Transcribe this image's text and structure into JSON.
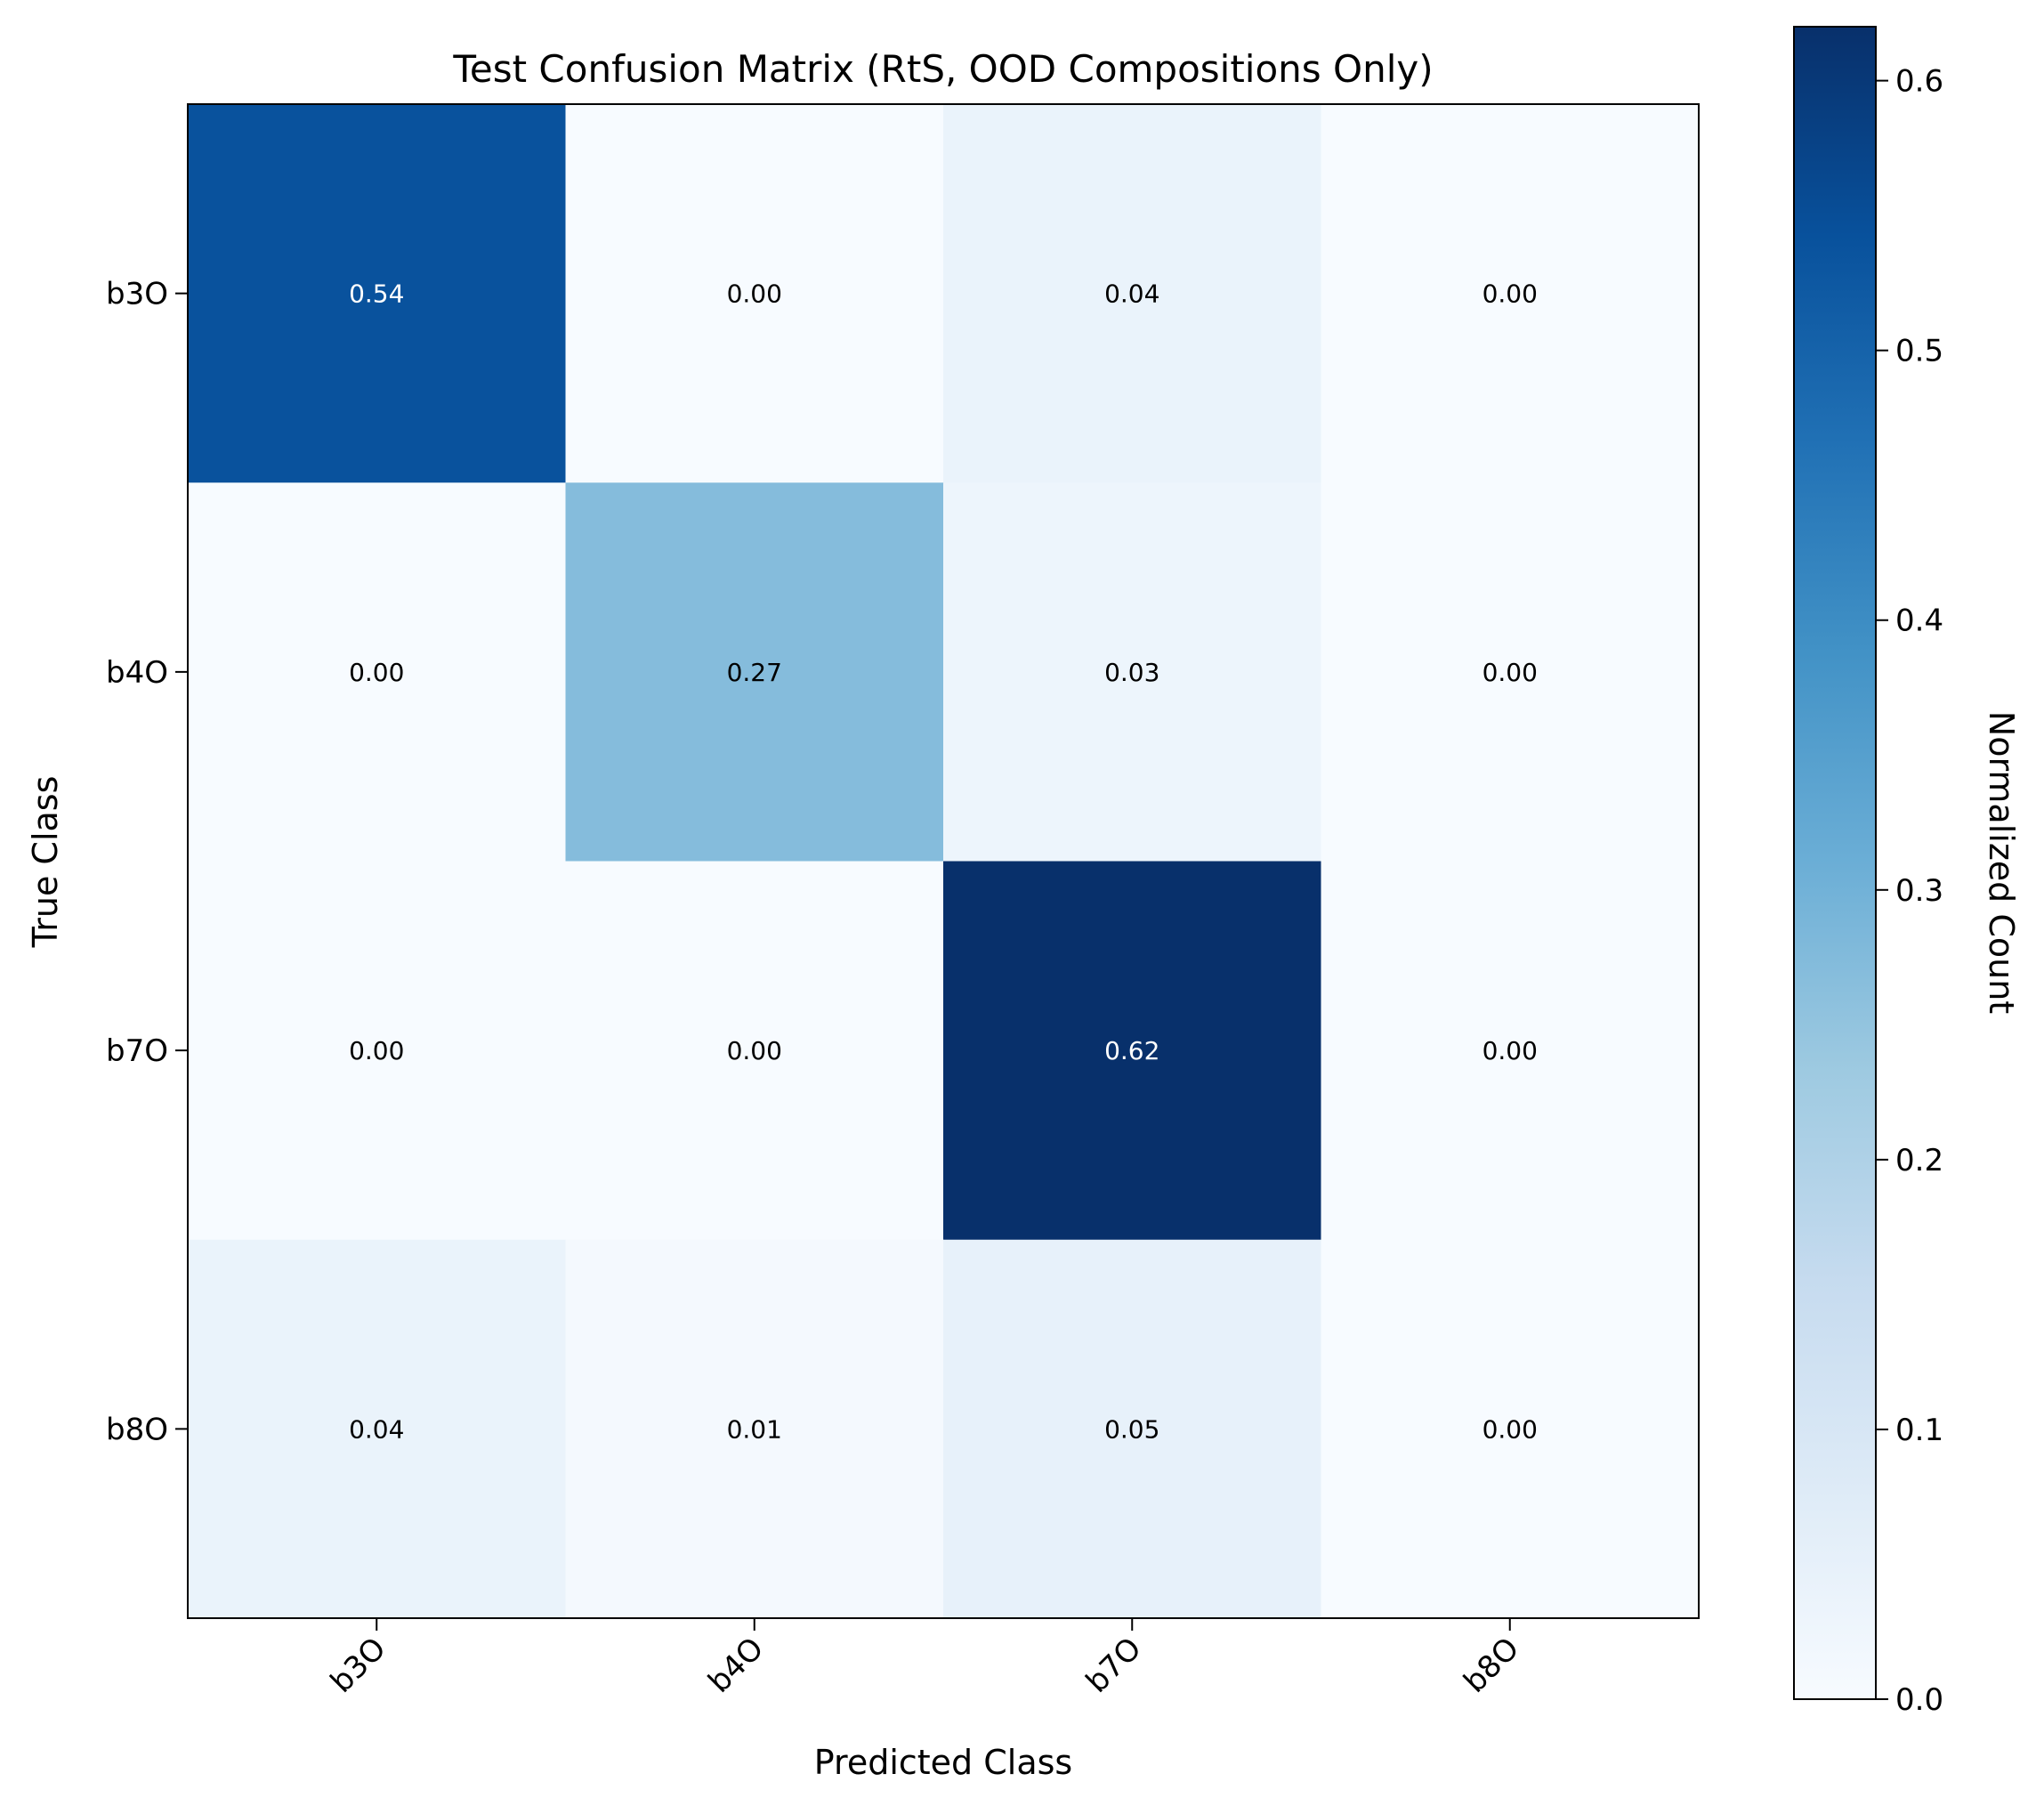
{
  "chart_data": {
    "type": "heatmap",
    "title": "Test Confusion Matrix (RtS, OOD Compositions Only)",
    "xlabel": "Predicted Class",
    "ylabel": "True Class",
    "x_categories": [
      "b3O",
      "b4O",
      "b7O",
      "b8O"
    ],
    "y_categories": [
      "b3O",
      "b4O",
      "b7O",
      "b8O"
    ],
    "values": [
      [
        0.54,
        0.0,
        0.04,
        0.0
      ],
      [
        0.0,
        0.27,
        0.03,
        0.0
      ],
      [
        0.0,
        0.0,
        0.62,
        0.0
      ],
      [
        0.04,
        0.01,
        0.05,
        0.0
      ]
    ],
    "cell_labels": [
      [
        "0.54",
        "0.00",
        "0.04",
        "0.00"
      ],
      [
        "0.00",
        "0.27",
        "0.03",
        "0.00"
      ],
      [
        "0.00",
        "0.00",
        "0.62",
        "0.00"
      ],
      [
        "0.04",
        "0.01",
        "0.05",
        "0.00"
      ]
    ],
    "colorbar": {
      "label": "Normalized Count",
      "range": [
        0.0,
        0.62
      ],
      "ticks": [
        0.0,
        0.1,
        0.2,
        0.3,
        0.4,
        0.5,
        0.6
      ],
      "tick_labels": [
        "0.0",
        "0.1",
        "0.2",
        "0.3",
        "0.4",
        "0.5",
        "0.6"
      ],
      "colormap": "Blues"
    },
    "colormap_stops": [
      "#f7fbff",
      "#deebf7",
      "#c6dbef",
      "#9ecae1",
      "#6baed6",
      "#4292c6",
      "#2171b5",
      "#08519c",
      "#08306b"
    ],
    "label_text_colors": {
      "light": "#ffffff",
      "dark": "#000000"
    },
    "grid": false
  }
}
